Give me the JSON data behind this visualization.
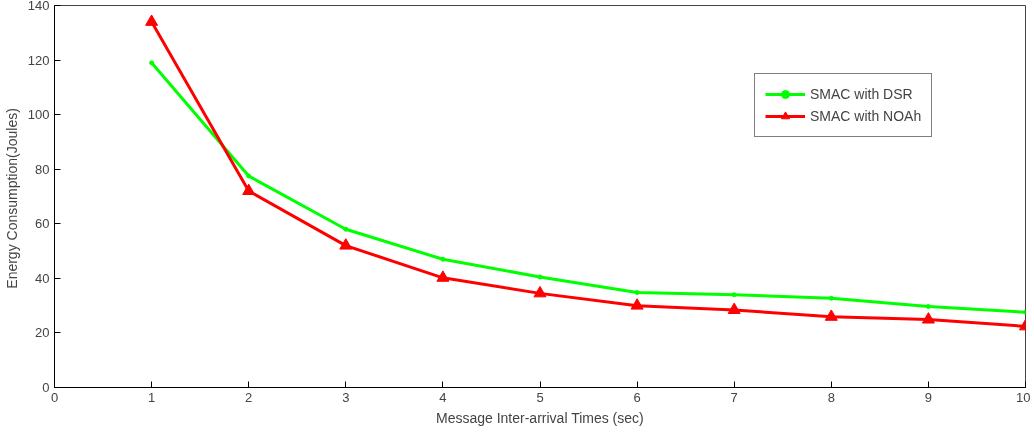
{
  "chart_data": {
    "type": "line",
    "xlabel": "Message Inter-arrival Times (sec)",
    "ylabel": "Energy  Consumption(Joules)",
    "x": [
      1,
      2,
      3,
      4,
      5,
      6,
      7,
      8,
      9,
      10
    ],
    "series": [
      {
        "name": "SMAC with DSR",
        "color": "#00ff00",
        "marker": "circle",
        "values": [
          119,
          77.5,
          58,
          47,
          40.5,
          34.8,
          34,
          32.7,
          29.7,
          27.6
        ]
      },
      {
        "name": "SMAC with NOAh",
        "color": "#ff0000",
        "marker": "triangle",
        "values": [
          134,
          72,
          52,
          40.2,
          34.5,
          30,
          28.4,
          25.9,
          24.9,
          22.4
        ]
      }
    ],
    "xlim": [
      0,
      10
    ],
    "ylim": [
      0,
      140
    ],
    "xticks": [
      0,
      1,
      2,
      3,
      4,
      5,
      6,
      7,
      8,
      9,
      10
    ],
    "yticks": [
      0,
      20,
      40,
      60,
      80,
      100,
      120,
      140
    ],
    "grid": false,
    "legend": "top right",
    "line_style": "solid"
  }
}
